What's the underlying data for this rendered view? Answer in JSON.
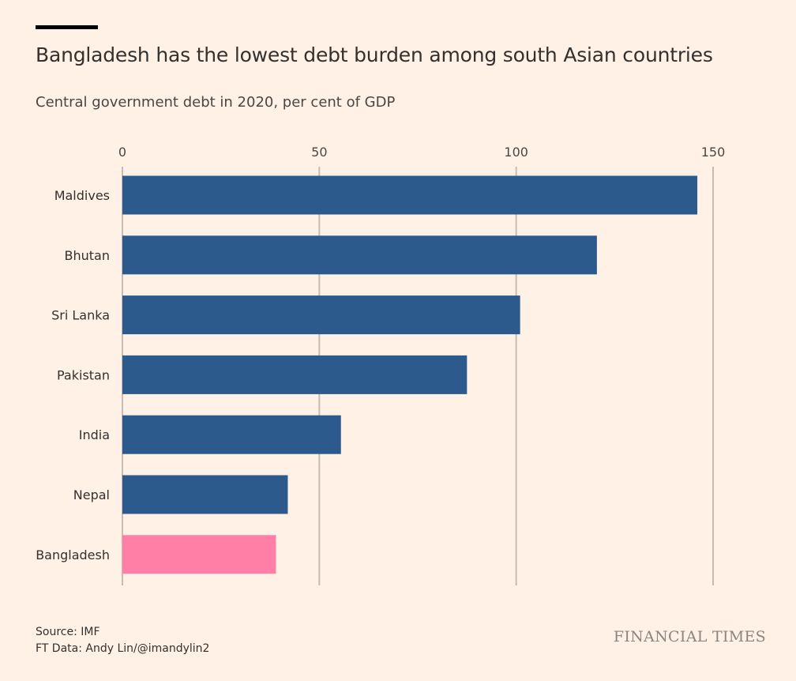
{
  "header": {
    "title": "Bangladesh has the lowest debt burden among south Asian countries",
    "subtitle": "Central government debt in 2020, per cent of GDP"
  },
  "chart_data": {
    "type": "bar",
    "orientation": "horizontal",
    "categories": [
      "Maldives",
      "Bhutan",
      "Sri Lanka",
      "Pakistan",
      "India",
      "Nepal",
      "Bangladesh"
    ],
    "values": [
      146,
      120.5,
      101,
      87.5,
      55.5,
      42,
      39
    ],
    "highlight": "Bangladesh",
    "xlim": [
      0,
      150
    ],
    "xticks": [
      0,
      50,
      100,
      150
    ],
    "xaxis_position": "top",
    "grid": "vertical",
    "colors": {
      "bar": "#2c5a8c",
      "highlight": "#ff7fa7",
      "grid": "#c7bcb3",
      "background": "#fff1e5"
    }
  },
  "footer": {
    "source": "Source: IMF",
    "credit": "FT Data: Andy Lin/@imandylin2",
    "logo": "FINANCIAL TIMES"
  }
}
